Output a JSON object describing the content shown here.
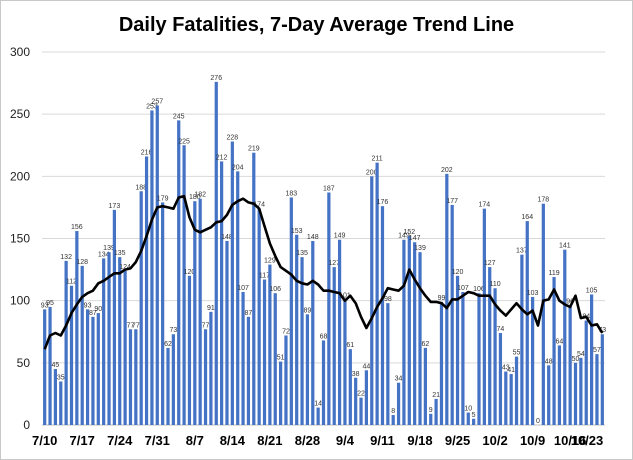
{
  "chart_data": {
    "type": "bar",
    "title": "Daily Fatalities, 7-Day Average Trend Line",
    "xlabel": "",
    "ylabel": "",
    "ylim": [
      0,
      300
    ],
    "yticks": [
      0,
      50,
      100,
      150,
      200,
      250,
      300
    ],
    "grid": true,
    "xtick_labels": [
      "7/10",
      "7/17",
      "7/24",
      "7/31",
      "8/7",
      "8/14",
      "8/21",
      "8/28",
      "9/4",
      "9/11",
      "9/18",
      "9/25",
      "10/2",
      "10/9",
      "10/16",
      "10/23"
    ],
    "bar_color": "#4472C4",
    "line_color": "#000000",
    "series": [
      {
        "type": "bar",
        "values": [
          93,
          95,
          45,
          35,
          132,
          112,
          156,
          128,
          93,
          87,
          90,
          134,
          139,
          173,
          135,
          124,
          77,
          77,
          188,
          216,
          253,
          257,
          179,
          62,
          73,
          245,
          225,
          120,
          180,
          182,
          77,
          91,
          276,
          212,
          148,
          228,
          204,
          107,
          87,
          219,
          174,
          117,
          129,
          106,
          51,
          72,
          183,
          153,
          135,
          89,
          148,
          14,
          68,
          187,
          127,
          149,
          101,
          61,
          38,
          22,
          44,
          200,
          211,
          176,
          98,
          8,
          34,
          149,
          152,
          147,
          139,
          62,
          9,
          21,
          99,
          202,
          177,
          120,
          107,
          10,
          5,
          106,
          174,
          127,
          110,
          74,
          43,
          41,
          55,
          137,
          164,
          103,
          0,
          178,
          48,
          119,
          64,
          141,
          96,
          50,
          54,
          84,
          105,
          57,
          73
        ]
      },
      {
        "type": "line",
        "values": [
          61,
          72,
          74,
          72,
          80,
          90,
          97,
          103,
          106,
          108,
          114,
          116,
          119,
          122,
          122,
          125,
          126,
          131,
          140,
          152,
          165,
          175,
          176,
          175,
          174,
          183,
          184,
          167,
          157,
          155,
          157,
          159,
          163,
          164,
          169,
          177,
          180,
          182,
          179,
          178,
          174,
          160,
          146,
          136,
          127,
          124,
          121,
          116,
          114,
          113,
          116,
          113,
          108,
          108,
          107,
          106,
          100,
          104,
          98,
          87,
          78,
          86,
          95,
          102,
          110,
          109,
          108,
          112,
          125,
          117,
          110,
          104,
          99,
          99,
          98,
          94,
          101,
          101,
          104,
          107,
          106,
          104,
          104,
          104,
          97,
          92,
          88,
          93,
          98,
          93,
          89,
          92,
          80,
          100,
          101,
          109,
          100,
          97,
          95,
          104,
          86,
          87,
          80,
          81,
          74
        ]
      }
    ]
  }
}
